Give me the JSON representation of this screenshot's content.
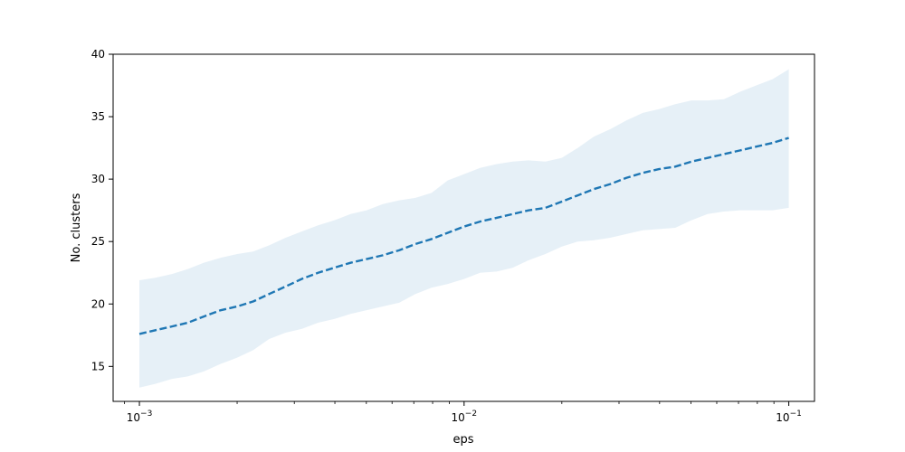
{
  "chart_data": {
    "type": "line",
    "title": "",
    "xlabel": "eps",
    "ylabel": "No. clusters",
    "xscale": "log",
    "xlim": [
      0.00083,
      0.12
    ],
    "ylim": [
      12.2,
      40
    ],
    "grid": false,
    "legend": "none",
    "x_ticks": [
      0.001,
      0.01,
      0.1
    ],
    "x_tick_labels": [
      {
        "base": "10",
        "exp": "−3"
      },
      {
        "base": "10",
        "exp": "−2"
      },
      {
        "base": "10",
        "exp": "−1"
      }
    ],
    "y_ticks": [
      15,
      20,
      25,
      30,
      35,
      40
    ],
    "series": [
      {
        "style": "dashed",
        "color": "#1f77b4",
        "band_color": "#1f77b4",
        "x": [
          0.001,
          0.00112,
          0.00126,
          0.00141,
          0.00158,
          0.00178,
          0.002,
          0.00224,
          0.00251,
          0.00282,
          0.00316,
          0.00355,
          0.00398,
          0.00447,
          0.00501,
          0.00562,
          0.00631,
          0.00708,
          0.00794,
          0.00891,
          0.01,
          0.0112,
          0.0126,
          0.0141,
          0.0158,
          0.0178,
          0.02,
          0.0224,
          0.0251,
          0.0282,
          0.0316,
          0.0355,
          0.0398,
          0.0447,
          0.0501,
          0.0562,
          0.0631,
          0.0708,
          0.0794,
          0.0891,
          0.1
        ],
        "mean": [
          17.6,
          17.9,
          18.2,
          18.5,
          19.0,
          19.5,
          19.8,
          20.2,
          20.8,
          21.4,
          22.0,
          22.5,
          22.9,
          23.3,
          23.6,
          23.9,
          24.3,
          24.8,
          25.2,
          25.7,
          26.2,
          26.6,
          26.9,
          27.2,
          27.5,
          27.7,
          28.2,
          28.7,
          29.2,
          29.6,
          30.1,
          30.5,
          30.8,
          31.0,
          31.4,
          31.7,
          32.0,
          32.3,
          32.6,
          32.9,
          33.3
        ],
        "lower": [
          13.3,
          13.6,
          14.0,
          14.2,
          14.6,
          15.2,
          15.7,
          16.3,
          17.2,
          17.7,
          18.0,
          18.5,
          18.8,
          19.2,
          19.5,
          19.8,
          20.1,
          20.8,
          21.3,
          21.6,
          22.0,
          22.5,
          22.6,
          22.9,
          23.5,
          24.0,
          24.6,
          25.0,
          25.1,
          25.3,
          25.6,
          25.9,
          26.0,
          26.1,
          26.7,
          27.2,
          27.4,
          27.5,
          27.5,
          27.5,
          27.7
        ],
        "upper": [
          21.9,
          22.1,
          22.4,
          22.8,
          23.3,
          23.7,
          24.0,
          24.2,
          24.7,
          25.3,
          25.8,
          26.3,
          26.7,
          27.2,
          27.5,
          28.0,
          28.3,
          28.5,
          28.9,
          29.9,
          30.4,
          30.9,
          31.2,
          31.4,
          31.5,
          31.4,
          31.7,
          32.5,
          33.4,
          34.0,
          34.7,
          35.3,
          35.6,
          36.0,
          36.3,
          36.3,
          36.4,
          37.0,
          37.5,
          38.0,
          38.8
        ]
      }
    ]
  }
}
